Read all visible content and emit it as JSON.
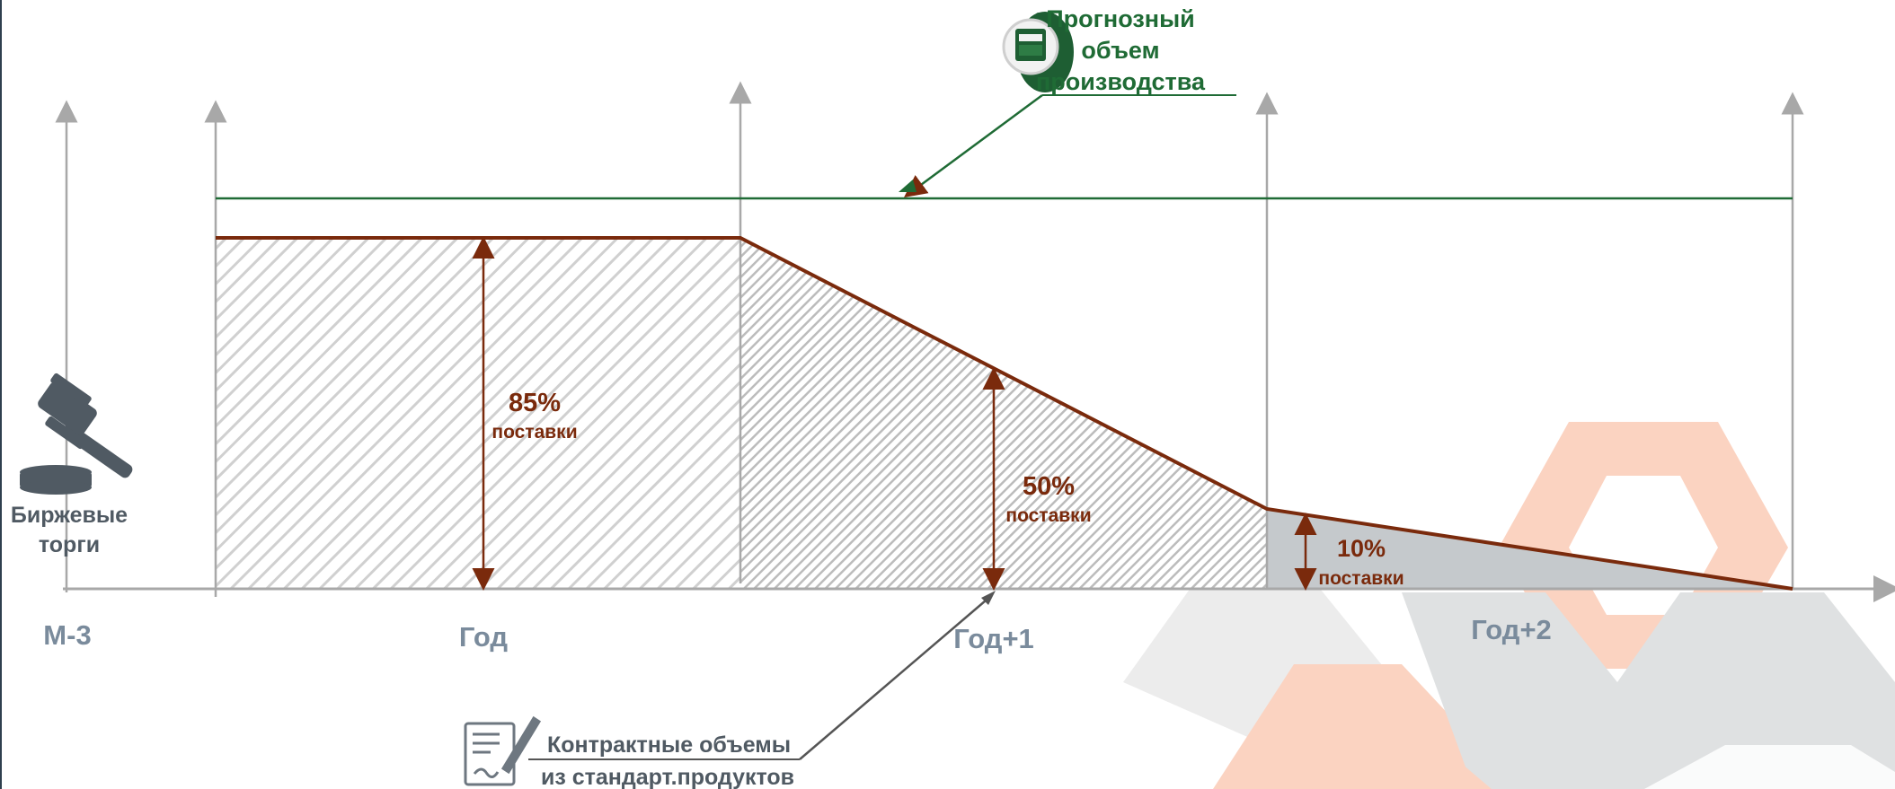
{
  "labels": {
    "forecast": [
      "Прогнозный",
      "объем",
      "производства"
    ],
    "exchange": [
      "Биржевые",
      "торги"
    ],
    "contracts": [
      "Контрактные объемы",
      "из стандарт.продуктов"
    ]
  },
  "periods": [
    "М-3",
    "Год",
    "Год+1",
    "Год+2"
  ],
  "shares": [
    {
      "percent": "85%",
      "note": "поставки"
    },
    {
      "percent": "50%",
      "note": "поставки"
    },
    {
      "percent": "10%",
      "note": "поставки"
    }
  ],
  "colors": {
    "forecast_line": "#1f6b35",
    "supply_line": "#7a2a0c",
    "axis": "#a8a8a8",
    "period_text": "#7a8b9c",
    "icon_dark": "#505a63",
    "hatch": "#c9c9c9",
    "shade": "#c5c9cc",
    "deco_orange": "#fbd3c1",
    "deco_gray": "#e8e8e8"
  },
  "icons": [
    "gavel-icon",
    "meter-icon",
    "contract-pen-icon"
  ]
}
